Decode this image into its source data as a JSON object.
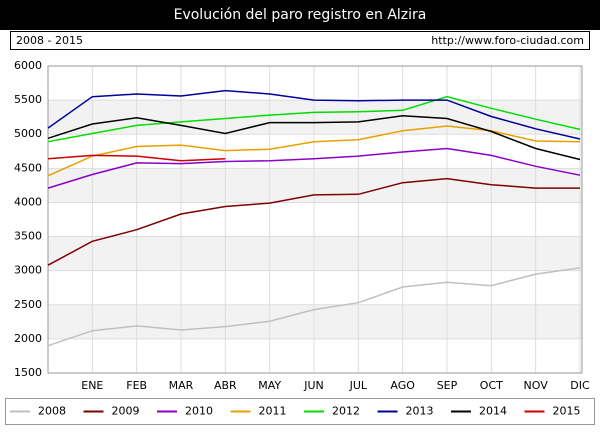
{
  "chart_data": {
    "type": "line",
    "title": "Evolución del paro registro en Alzira",
    "subtitle": "2008 - 2015",
    "source": "http://www.foro-ciudad.com",
    "categories": [
      null,
      "ENE",
      "FEB",
      "MAR",
      "ABR",
      "MAY",
      "JUN",
      "JUL",
      "AGO",
      "SEP",
      "OCT",
      "NOV",
      "DIC"
    ],
    "ylim": [
      1500,
      6000
    ],
    "yticks": [
      1500,
      2000,
      2500,
      3000,
      3500,
      4000,
      4500,
      5000,
      5500,
      6000
    ],
    "grid": true,
    "legend": "bottom",
    "series": [
      {
        "name": "2008",
        "color": "#c0c0c0",
        "values": [
          1900,
          2120,
          2190,
          2130,
          2180,
          2260,
          2430,
          2530,
          2760,
          2830,
          2780,
          2950,
          3040
        ]
      },
      {
        "name": "2009",
        "color": "#800000",
        "values": [
          3080,
          3430,
          3600,
          3830,
          3940,
          3990,
          4110,
          4120,
          4290,
          4350,
          4260,
          4210,
          4210
        ]
      },
      {
        "name": "2010",
        "color": "#8a00c8",
        "values": [
          4210,
          4410,
          4580,
          4570,
          4600,
          4610,
          4640,
          4680,
          4740,
          4790,
          4690,
          4530,
          4400
        ]
      },
      {
        "name": "2011",
        "color": "#e8a000",
        "values": [
          4390,
          4680,
          4820,
          4840,
          4760,
          4780,
          4890,
          4920,
          5050,
          5120,
          5050,
          4900,
          4890
        ]
      },
      {
        "name": "2012",
        "color": "#00dd00",
        "values": [
          4890,
          5010,
          5130,
          5180,
          5230,
          5280,
          5320,
          5330,
          5350,
          5550,
          5380,
          5220,
          5070
        ]
      },
      {
        "name": "2013",
        "color": "#000099",
        "values": [
          5090,
          5550,
          5590,
          5560,
          5640,
          5590,
          5500,
          5490,
          5500,
          5500,
          5260,
          5080,
          4930
        ]
      },
      {
        "name": "2014",
        "color": "#000000",
        "values": [
          4940,
          5150,
          5240,
          5130,
          5010,
          5170,
          5170,
          5180,
          5270,
          5230,
          5040,
          4790,
          4630
        ]
      },
      {
        "name": "2015",
        "color": "#cc0000",
        "values": [
          4640,
          4690,
          4680,
          4610,
          4640,
          null,
          null,
          null,
          null,
          null,
          null,
          null,
          null
        ]
      }
    ]
  }
}
